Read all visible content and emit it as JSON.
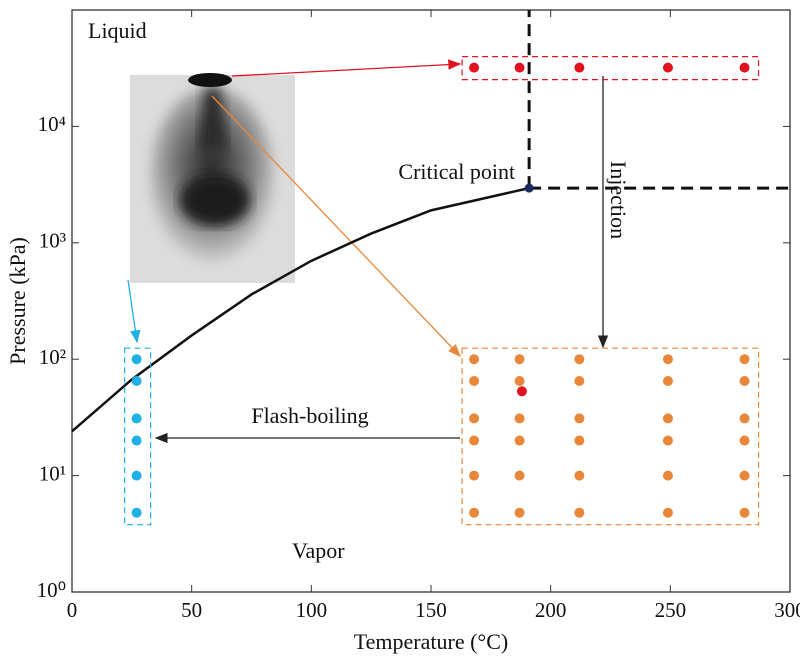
{
  "chart_data": {
    "type": "scatter",
    "xlabel": "Temperature (°C)",
    "ylabel": "Pressure (kPa)",
    "xlim": [
      0,
      300
    ],
    "ylim": [
      1,
      100000
    ],
    "yscale": "log",
    "xticks": [
      0,
      50,
      100,
      150,
      200,
      250,
      300
    ],
    "yticks": [
      {
        "value": 1,
        "label": "10⁰"
      },
      {
        "value": 10,
        "label": "10¹"
      },
      {
        "value": 100,
        "label": "10²"
      },
      {
        "value": 1000,
        "label": "10³"
      },
      {
        "value": 10000,
        "label": "10⁴"
      }
    ],
    "series": [
      {
        "type": "line",
        "color": "#111111",
        "x": [
          0,
          25,
          50,
          75,
          100,
          125,
          150,
          191
        ],
        "values": [
          24,
          67,
          160,
          360,
          700,
          1200,
          1900,
          2950
        ]
      },
      {
        "type": "scatter",
        "color": "#e0141e",
        "x": [
          168,
          187,
          212,
          249,
          281
        ],
        "values": [
          32000,
          32000,
          32000,
          32000,
          32000
        ]
      },
      {
        "type": "scatter",
        "color": "#e8873a",
        "x": [
          168,
          168,
          168,
          168,
          168,
          168,
          187,
          187,
          187,
          187,
          187,
          187,
          212,
          212,
          212,
          212,
          212,
          212,
          249,
          249,
          249,
          249,
          249,
          249,
          281,
          281,
          281,
          281,
          281,
          281
        ],
        "values": [
          100,
          65,
          31,
          20,
          10,
          4.8,
          100,
          65,
          31,
          20,
          10,
          4.8,
          100,
          65,
          31,
          20,
          10,
          4.8,
          100,
          65,
          31,
          20,
          10,
          4.8,
          100,
          65,
          31,
          20,
          10,
          4.8
        ]
      },
      {
        "type": "scatter",
        "color": "#e0141e",
        "x": [
          188
        ],
        "values": [
          53
        ]
      },
      {
        "type": "scatter",
        "color": "#1fb0e6",
        "x": [
          27,
          27,
          27,
          27,
          27,
          27
        ],
        "values": [
          100,
          65,
          31,
          20,
          10,
          4.8
        ]
      }
    ],
    "critical_point": {
      "x": 191,
      "y": 2950,
      "label": "Critical point",
      "color": "#1a2a5a"
    },
    "region_labels": [
      "Liquid",
      "Vapor"
    ],
    "annotations": [
      "Injection",
      "Flash-boiling"
    ]
  }
}
